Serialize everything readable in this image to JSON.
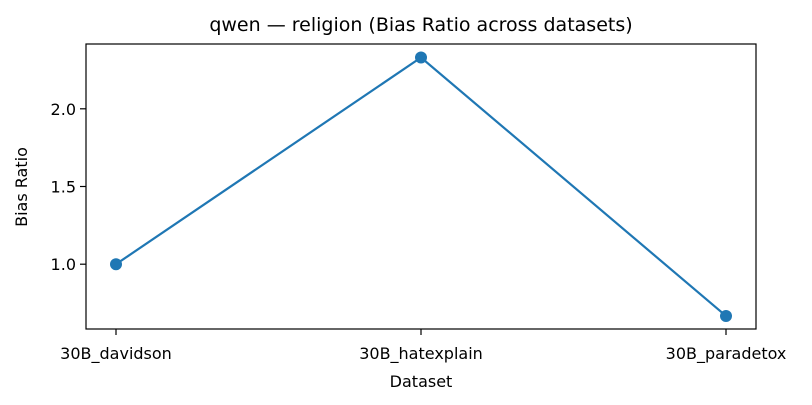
{
  "chart_data": {
    "type": "line",
    "title": "qwen — religion (Bias Ratio across datasets)",
    "xlabel": "Dataset",
    "ylabel": "Bias Ratio",
    "categories": [
      "30B_davidson",
      "30B_hatexplain",
      "30B_paradetox"
    ],
    "series": [
      {
        "values": [
          1.0,
          2.33,
          0.667
        ],
        "color": "#1f77b4",
        "marker": "circle"
      }
    ],
    "yticks": [
      1.0,
      1.5,
      2.0
    ],
    "ytick_labels": [
      "1.0",
      "1.5",
      "2.0"
    ],
    "ylim": [
      0.583,
      2.417
    ],
    "grid": false,
    "legend": false
  }
}
